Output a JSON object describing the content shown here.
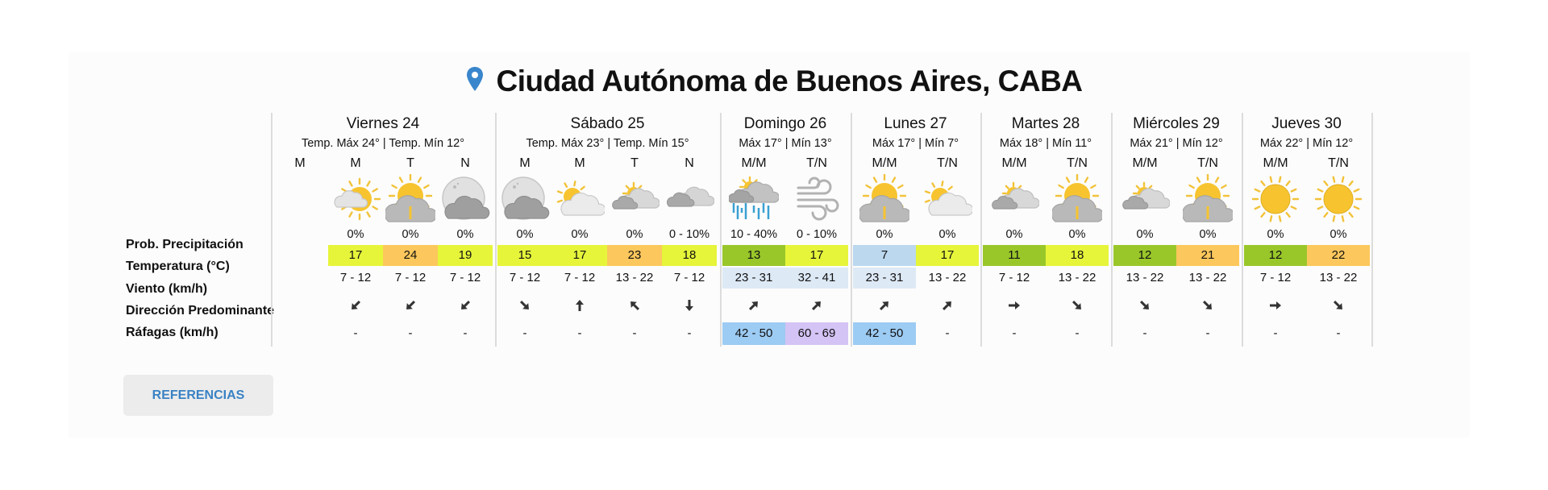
{
  "header": {
    "location_icon": "map-pin-icon",
    "location_color": "#3a86cc",
    "title": "Ciudad Autónoma de Buenos Aires, CABA"
  },
  "row_labels": {
    "precipitation": "Prob. Precipitación",
    "temperature": "Temperatura (°C)",
    "wind": "Viento (km/h)",
    "direction": "Dirección Predominante",
    "gusts": "Ráfagas (km/h)"
  },
  "colors": {
    "yellow_green": "#e6f53a",
    "orange": "#fcc75c",
    "green": "#99c72a",
    "light_blue": "#bcd8ef",
    "wind_highlight": "#dde9f5",
    "gust_blue": "#9ccbf3",
    "gust_purple": "#d4c3f5"
  },
  "days": [
    {
      "name": "Viernes 24",
      "maxmin": "Temp. Máx 24° | Temp. Mín 12°",
      "periods": [
        {
          "label": "M",
          "icon": "",
          "precip": "",
          "temp": "",
          "temp_color": "",
          "wind": "",
          "wind_bg": "",
          "dir": "",
          "gust": "",
          "gust_bg": ""
        },
        {
          "label": "M",
          "icon": "partly-cloudy-day-icon",
          "precip": "0%",
          "temp": "17",
          "temp_color": "#e6f53a",
          "wind": "7 - 12",
          "wind_bg": "",
          "dir": "sw",
          "gust": "-",
          "gust_bg": ""
        },
        {
          "label": "T",
          "icon": "sun-behind-cloud-icon",
          "precip": "0%",
          "temp": "24",
          "temp_color": "#fcc75c",
          "wind": "7 - 12",
          "wind_bg": "",
          "dir": "sw",
          "gust": "-",
          "gust_bg": ""
        },
        {
          "label": "N",
          "icon": "cloudy-night-icon",
          "precip": "0%",
          "temp": "19",
          "temp_color": "#e6f53a",
          "wind": "7 - 12",
          "wind_bg": "",
          "dir": "sw",
          "gust": "-",
          "gust_bg": ""
        }
      ]
    },
    {
      "name": "Sábado 25",
      "maxmin": "Temp. Máx 23° | Temp. Mín 15°",
      "periods": [
        {
          "label": "M",
          "icon": "cloudy-night-icon",
          "precip": "0%",
          "temp": "15",
          "temp_color": "#e6f53a",
          "wind": "7 - 12",
          "wind_bg": "",
          "dir": "se",
          "gust": "-",
          "gust_bg": ""
        },
        {
          "label": "M",
          "icon": "sun-rising-cloud-icon",
          "precip": "0%",
          "temp": "17",
          "temp_color": "#e6f53a",
          "wind": "7 - 12",
          "wind_bg": "",
          "dir": "n",
          "gust": "-",
          "gust_bg": ""
        },
        {
          "label": "T",
          "icon": "mostly-cloudy-day-icon",
          "precip": "0%",
          "temp": "23",
          "temp_color": "#fcc75c",
          "wind": "13 - 22",
          "wind_bg": "",
          "dir": "nw",
          "gust": "-",
          "gust_bg": ""
        },
        {
          "label": "N",
          "icon": "cloudy-icon",
          "precip": "0 - 10%",
          "temp": "18",
          "temp_color": "#e6f53a",
          "wind": "7 - 12",
          "wind_bg": "",
          "dir": "s",
          "gust": "-",
          "gust_bg": ""
        }
      ]
    },
    {
      "name": "Domingo 26",
      "maxmin": "Máx 17° | Mín 13°",
      "periods": [
        {
          "label": "M/M",
          "icon": "rain-icon",
          "precip": "10 - 40%",
          "temp": "13",
          "temp_color": "#99c72a",
          "wind": "23 - 31",
          "wind_bg": "#dde9f5",
          "dir": "ne",
          "gust": "42 - 50",
          "gust_bg": "#9ccbf3"
        },
        {
          "label": "T/N",
          "icon": "wind-icon",
          "precip": "0 - 10%",
          "temp": "17",
          "temp_color": "#e6f53a",
          "wind": "32 - 41",
          "wind_bg": "#dde9f5",
          "dir": "ne",
          "gust": "60 - 69",
          "gust_bg": "#d4c3f5"
        }
      ]
    },
    {
      "name": "Lunes 27",
      "maxmin": "Máx 17° | Mín 7°",
      "periods": [
        {
          "label": "M/M",
          "icon": "sun-behind-cloud-icon",
          "precip": "0%",
          "temp": "7",
          "temp_color": "#bcd8ef",
          "wind": "23 - 31",
          "wind_bg": "#dde9f5",
          "dir": "ne",
          "gust": "42 - 50",
          "gust_bg": "#9ccbf3"
        },
        {
          "label": "T/N",
          "icon": "sun-rising-cloud-icon",
          "precip": "0%",
          "temp": "17",
          "temp_color": "#e6f53a",
          "wind": "13 - 22",
          "wind_bg": "",
          "dir": "ne",
          "gust": "-",
          "gust_bg": ""
        }
      ]
    },
    {
      "name": "Martes 28",
      "maxmin": "Máx 18° | Mín 11°",
      "periods": [
        {
          "label": "M/M",
          "icon": "mostly-cloudy-day-icon",
          "precip": "0%",
          "temp": "11",
          "temp_color": "#99c72a",
          "wind": "7 - 12",
          "wind_bg": "",
          "dir": "e",
          "gust": "-",
          "gust_bg": ""
        },
        {
          "label": "T/N",
          "icon": "sun-behind-cloud-icon",
          "precip": "0%",
          "temp": "18",
          "temp_color": "#e6f53a",
          "wind": "13 - 22",
          "wind_bg": "",
          "dir": "se",
          "gust": "-",
          "gust_bg": ""
        }
      ]
    },
    {
      "name": "Miércoles 29",
      "maxmin": "Máx 21° | Mín 12°",
      "periods": [
        {
          "label": "M/M",
          "icon": "mostly-cloudy-day-icon",
          "precip": "0%",
          "temp": "12",
          "temp_color": "#99c72a",
          "wind": "13 - 22",
          "wind_bg": "",
          "dir": "se",
          "gust": "-",
          "gust_bg": ""
        },
        {
          "label": "T/N",
          "icon": "sun-behind-cloud-icon",
          "precip": "0%",
          "temp": "21",
          "temp_color": "#fcc75c",
          "wind": "13 - 22",
          "wind_bg": "",
          "dir": "se",
          "gust": "-",
          "gust_bg": ""
        }
      ]
    },
    {
      "name": "Jueves 30",
      "maxmin": "Máx 22° | Mín 12°",
      "periods": [
        {
          "label": "M/M",
          "icon": "sunny-icon",
          "precip": "0%",
          "temp": "12",
          "temp_color": "#99c72a",
          "wind": "7 - 12",
          "wind_bg": "",
          "dir": "e",
          "gust": "-",
          "gust_bg": ""
        },
        {
          "label": "T/N",
          "icon": "sunny-icon",
          "precip": "0%",
          "temp": "22",
          "temp_color": "#fcc75c",
          "wind": "13 - 22",
          "wind_bg": "",
          "dir": "se",
          "gust": "-",
          "gust_bg": ""
        }
      ]
    }
  ],
  "references_button": "REFERENCIAS"
}
